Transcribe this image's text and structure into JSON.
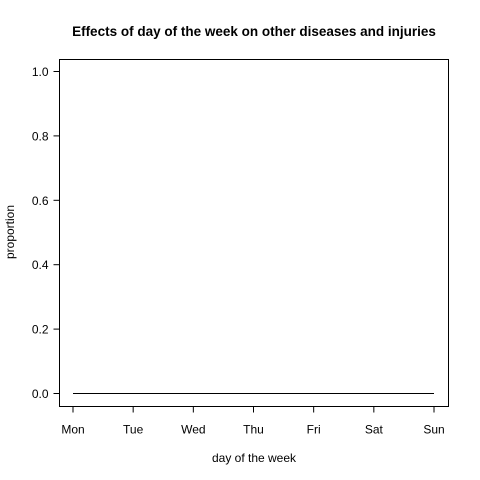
{
  "chart_data": {
    "type": "line",
    "title": "Effects of day of the week on other diseases and injuries",
    "xlabel": "day of the week",
    "ylabel": "proportion",
    "categories": [
      "Mon",
      "Tue",
      "Wed",
      "Thu",
      "Fri",
      "Sat",
      "Sun"
    ],
    "ylim": [
      0.0,
      1.0
    ],
    "y_ticks": [
      "0.0",
      "0.2",
      "0.4",
      "0.6",
      "0.8",
      "1.0"
    ],
    "series": [
      {
        "values": [
          0,
          0,
          0,
          0,
          0,
          0,
          0
        ],
        "color": "#000000"
      }
    ],
    "grid": false,
    "legend": "none"
  }
}
